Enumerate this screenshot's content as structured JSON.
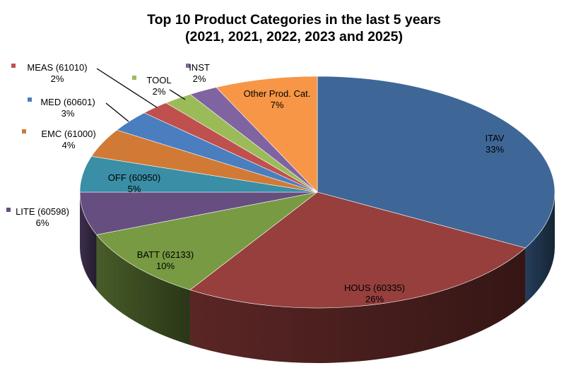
{
  "chart_data": {
    "type": "pie",
    "title_line1": "Top 10 Product Categories in the last 5 years",
    "title_line2": "(2021, 2021, 2022, 2023 and 2025)",
    "legend": "none",
    "slices": [
      {
        "label": "ITAV",
        "pct_label": "33%",
        "value": 33,
        "color": "#3E6797"
      },
      {
        "label": "HOUS  (60335)",
        "pct_label": "26%",
        "value": 26,
        "color": "#963F3D"
      },
      {
        "label": "BATT (62133)",
        "pct_label": "10%",
        "value": 10,
        "color": "#789A42"
      },
      {
        "label": "LITE (60598)",
        "pct_label": "6%",
        "value": 6,
        "color": "#664F80"
      },
      {
        "label": "OFF (60950)",
        "pct_label": "5%",
        "value": 5,
        "color": "#3A8EA6"
      },
      {
        "label": "EMC (61000)",
        "pct_label": "4%",
        "value": 4,
        "color": "#D07A36"
      },
      {
        "label": "MED (60601)",
        "pct_label": "3%",
        "value": 3,
        "color": "#4A7EBF"
      },
      {
        "label": "MEAS (61010)",
        "pct_label": "2%",
        "value": 2,
        "color": "#C0504D"
      },
      {
        "label": "TOOL",
        "pct_label": "2%",
        "value": 2,
        "color": "#9BBB59"
      },
      {
        "label": "INST",
        "pct_label": "2%",
        "value": 2,
        "color": "#8064A2"
      },
      {
        "label": "Other Prod. Cat.",
        "pct_label": "7%",
        "value": 7,
        "color": "#F79646"
      }
    ]
  }
}
